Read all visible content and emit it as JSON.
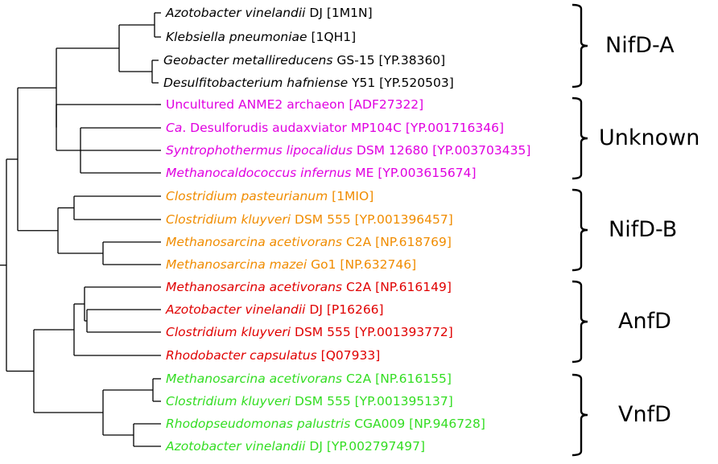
{
  "colors": {
    "branch": "#000000",
    "NifD-A": "#000000",
    "Unknown": "#e000e0",
    "NifD-B": "#f08c00",
    "AnfD": "#e00000",
    "VnfD": "#33dd22"
  },
  "leaves": [
    {
      "group": "NifD-A",
      "italic": "Azotobacter vinelandii",
      "rest": " DJ [1M1N]"
    },
    {
      "group": "NifD-A",
      "italic": "Klebsiella pneumoniae",
      "rest": " [1QH1]"
    },
    {
      "group": "NifD-A",
      "italic": "Geobacter metallireducens",
      "rest": " GS-15 [YP.38360]"
    },
    {
      "group": "NifD-A",
      "italic": "Desulfitobacterium hafniense",
      "rest": " Y51 [YP.520503]"
    },
    {
      "group": "Unknown",
      "italic": "",
      "rest": "Uncultured ANME2 archaeon [ADF27322]"
    },
    {
      "group": "Unknown",
      "italic": "Ca",
      "rest": ". Desulforudis audaxviator MP104C [YP.001716346]"
    },
    {
      "group": "Unknown",
      "italic": "Syntrophothermus lipocalidus",
      "rest": " DSM 12680 [YP.003703435]"
    },
    {
      "group": "Unknown",
      "italic": "Methanocaldococcus infernus",
      "rest": " ME [YP.003615674]"
    },
    {
      "group": "NifD-B",
      "italic": "Clostridium pasteurianum",
      "rest": " [1MIO]"
    },
    {
      "group": "NifD-B",
      "italic": "Clostridium kluyveri",
      "rest": " DSM 555 [YP.001396457]"
    },
    {
      "group": "NifD-B",
      "italic": "Methanosarcina acetivorans",
      "rest": " C2A [NP.618769]"
    },
    {
      "group": "NifD-B",
      "italic": "Methanosarcina mazei",
      "rest": " Go1 [NP.632746]"
    },
    {
      "group": "AnfD",
      "italic": "Methanosarcina acetivorans",
      "rest": " C2A [NP.616149]"
    },
    {
      "group": "AnfD",
      "italic": "Azotobacter vinelandii",
      "rest": " DJ [P16266]"
    },
    {
      "group": "AnfD",
      "italic": "Clostridium kluyveri",
      "rest": " DSM 555 [YP.001393772]"
    },
    {
      "group": "AnfD",
      "italic": "Rhodobacter capsulatus",
      "rest": " [Q07933]"
    },
    {
      "group": "VnfD",
      "italic": "Methanosarcina acetivorans",
      "rest": " C2A [NP.616155]"
    },
    {
      "group": "VnfD",
      "italic": "Clostridium kluyveri",
      "rest": " DSM 555 [YP.001395137]"
    },
    {
      "group": "VnfD",
      "italic": "Rhodopseudomonas palustris",
      "rest": " CGA009 [NP.946728]"
    },
    {
      "group": "VnfD",
      "italic": "Azotobacter vinelandii",
      "rest": " DJ [YP.002797497]"
    }
  ],
  "groups": [
    "NifD-A",
    "Unknown",
    "NifD-B",
    "AnfD",
    "VnfD"
  ]
}
